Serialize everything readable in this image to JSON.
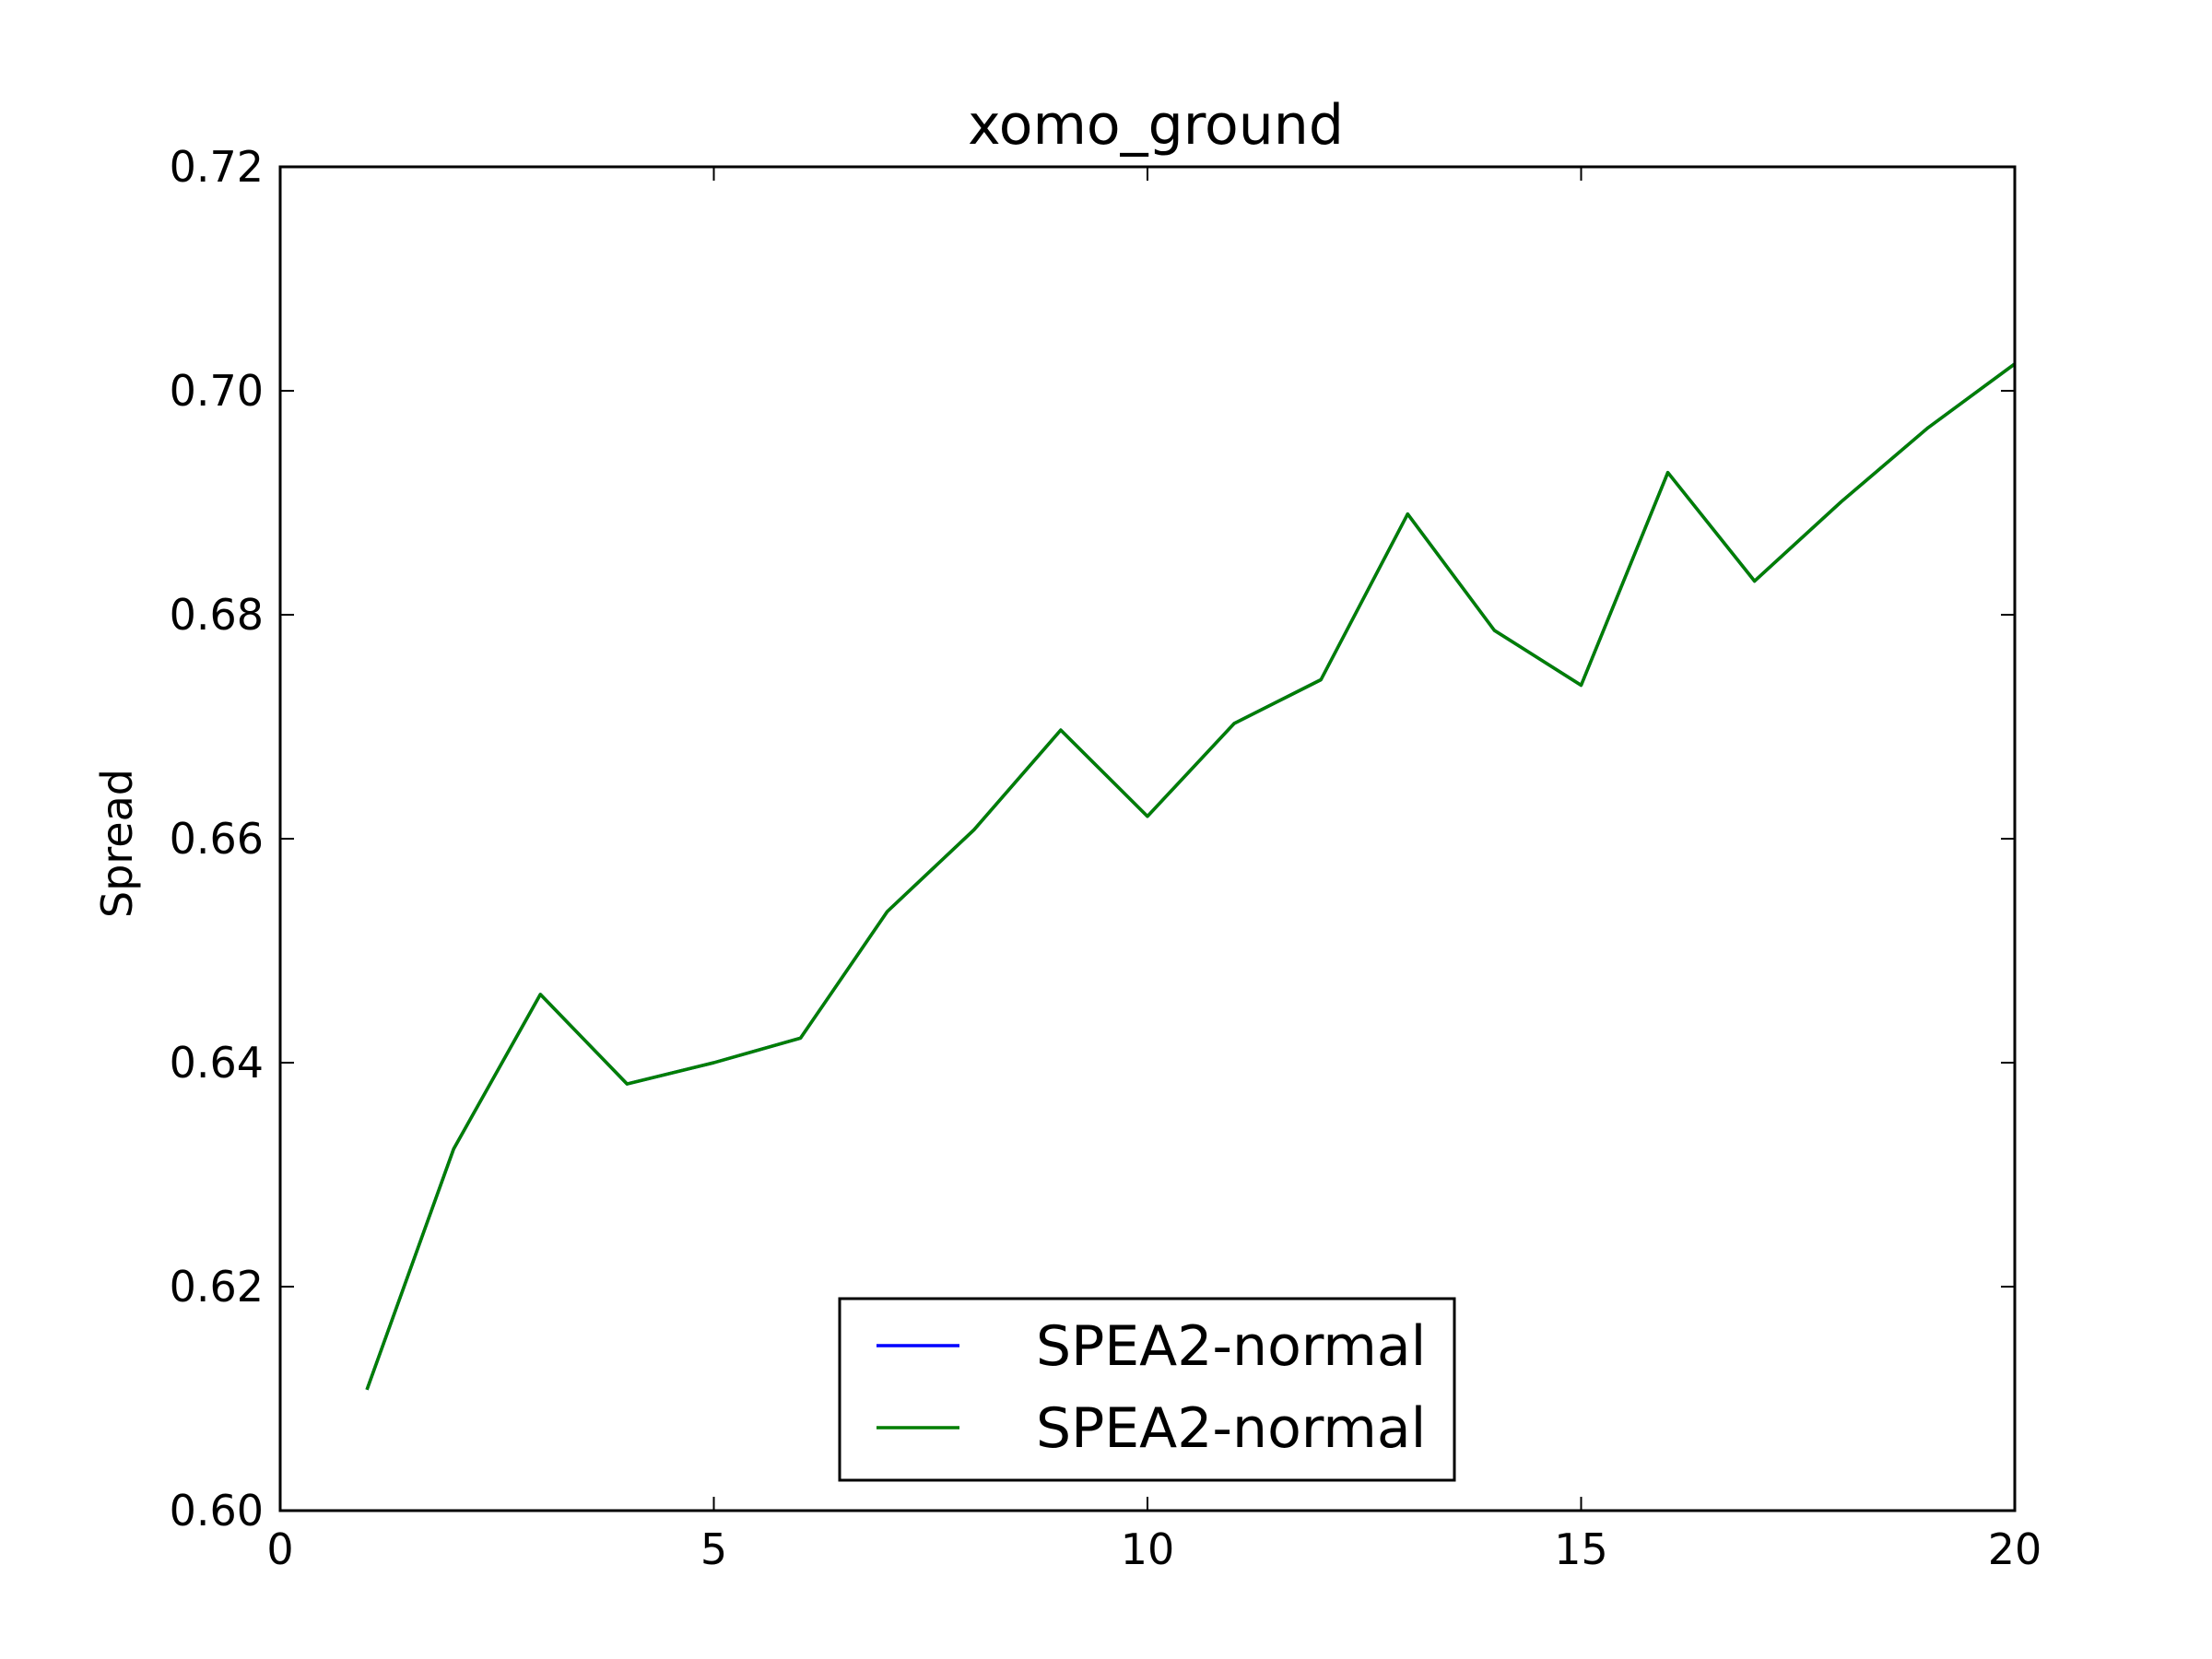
{
  "chart_data": {
    "type": "line",
    "title": "xomo_ground",
    "xlabel": "",
    "ylabel": "Spread",
    "xlim": [
      0,
      20
    ],
    "ylim": [
      0.6,
      0.72
    ],
    "xticks": [
      0,
      5,
      10,
      15,
      20
    ],
    "xtick_labels": [
      "0",
      "5",
      "10",
      "15",
      "20"
    ],
    "yticks": [
      0.6,
      0.62,
      0.64,
      0.66,
      0.68,
      0.7,
      0.72
    ],
    "ytick_labels": [
      "0.60",
      "0.62",
      "0.64",
      "0.66",
      "0.68",
      "0.70",
      "0.72"
    ],
    "grid": false,
    "legend_position": "lower-center",
    "series": [
      {
        "name": "SPEA2-normal",
        "color": "#0000ff",
        "x": [
          1,
          2,
          3,
          4,
          5,
          6,
          7,
          8,
          9,
          10,
          11,
          12,
          13,
          14,
          15,
          16,
          17,
          18,
          19,
          20
        ],
        "values": [
          0.6108,
          0.6323,
          0.6461,
          0.6381,
          0.64,
          0.6422,
          0.6535,
          0.6608,
          0.6697,
          0.662,
          0.6703,
          0.6742,
          0.689,
          0.6786,
          0.6737,
          0.6927,
          0.683,
          0.6901,
          0.6967,
          0.7024
        ]
      },
      {
        "name": "SPEA2-normal",
        "color": "#007f00",
        "x": [
          1,
          2,
          3,
          4,
          5,
          6,
          7,
          8,
          9,
          10,
          11,
          12,
          13,
          14,
          15,
          16,
          17,
          18,
          19,
          20
        ],
        "values": [
          0.6108,
          0.6323,
          0.6461,
          0.6381,
          0.64,
          0.6422,
          0.6535,
          0.6608,
          0.6697,
          0.662,
          0.6703,
          0.6742,
          0.689,
          0.6786,
          0.6737,
          0.6927,
          0.683,
          0.6901,
          0.6967,
          0.7024
        ]
      }
    ]
  }
}
